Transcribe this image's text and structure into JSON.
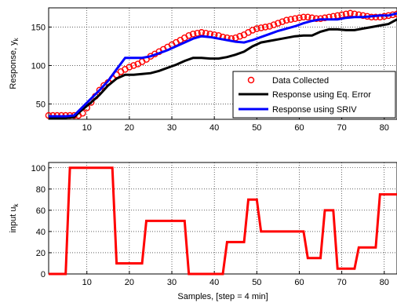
{
  "chart_data": [
    {
      "type": "line",
      "ylabel_main": "Response, y",
      "ylabel_sub": "k",
      "xlim": [
        1,
        83
      ],
      "ylim": [
        30,
        175
      ],
      "xticks": [
        10,
        20,
        30,
        40,
        50,
        60,
        70,
        80
      ],
      "yticks": [
        50,
        100,
        150
      ],
      "grid": true,
      "legend_position": "bottom-right",
      "colors": {
        "data": "#ff0000",
        "eq_error": "#000000",
        "sriv": "#0000ff"
      },
      "series": [
        {
          "name": "Data Collected",
          "style": "markers",
          "x": [
            1,
            2,
            3,
            4,
            5,
            6,
            7,
            8,
            9,
            10,
            11,
            12,
            13,
            14,
            15,
            16,
            17,
            18,
            19,
            20,
            21,
            22,
            23,
            24,
            25,
            26,
            27,
            28,
            29,
            30,
            31,
            32,
            33,
            34,
            35,
            36,
            37,
            38,
            39,
            40,
            41,
            42,
            43,
            44,
            45,
            46,
            47,
            48,
            49,
            50,
            51,
            52,
            53,
            54,
            55,
            56,
            57,
            58,
            59,
            60,
            61,
            62,
            63,
            64,
            65,
            66,
            67,
            68,
            69,
            70,
            71,
            72,
            73,
            74,
            75,
            76,
            77,
            78,
            79,
            80,
            81,
            82,
            83
          ],
          "y": [
            35,
            35,
            35,
            35,
            35,
            35,
            35,
            35,
            38,
            45,
            52,
            60,
            68,
            74,
            78,
            83,
            88,
            92,
            95,
            98,
            100,
            102,
            105,
            108,
            112,
            115,
            118,
            121,
            124,
            127,
            130,
            133,
            136,
            139,
            141,
            142,
            143,
            142,
            141,
            140,
            139,
            137,
            136,
            135,
            136,
            138,
            140,
            143,
            146,
            148,
            149,
            150,
            151,
            153,
            155,
            157,
            159,
            160,
            161,
            162,
            163,
            163,
            162,
            161,
            161,
            162,
            163,
            164,
            165,
            166,
            167,
            168,
            167,
            166,
            165,
            164,
            163,
            163,
            163,
            164,
            165,
            166,
            167
          ]
        },
        {
          "name": "Response using Eq. Error",
          "style": "line",
          "x": [
            1,
            3,
            5,
            7,
            9,
            11,
            13,
            15,
            17,
            19,
            21,
            23,
            25,
            27,
            29,
            31,
            33,
            35,
            37,
            39,
            41,
            43,
            45,
            47,
            49,
            51,
            53,
            55,
            57,
            59,
            61,
            63,
            65,
            67,
            69,
            71,
            73,
            75,
            77,
            79,
            81,
            83
          ],
          "y": [
            32,
            32,
            32,
            33,
            43,
            52,
            62,
            74,
            83,
            88,
            88,
            89,
            90,
            93,
            97,
            101,
            106,
            110,
            110,
            109,
            109,
            111,
            114,
            118,
            125,
            130,
            132,
            134,
            136,
            138,
            139,
            139,
            144,
            147,
            147,
            146,
            146,
            148,
            150,
            152,
            154,
            160
          ]
        },
        {
          "name": "Response using SRIV",
          "style": "line",
          "x": [
            1,
            3,
            5,
            7,
            9,
            11,
            13,
            15,
            17,
            19,
            21,
            23,
            25,
            27,
            29,
            31,
            33,
            35,
            37,
            39,
            41,
            43,
            45,
            47,
            49,
            51,
            53,
            55,
            57,
            59,
            61,
            63,
            65,
            67,
            69,
            71,
            73,
            75,
            77,
            79,
            81,
            83
          ],
          "y": [
            34,
            34,
            34,
            35,
            46,
            57,
            68,
            80,
            95,
            110,
            110,
            110,
            112,
            116,
            120,
            125,
            130,
            135,
            138,
            137,
            135,
            133,
            131,
            130,
            133,
            137,
            141,
            145,
            148,
            151,
            155,
            158,
            160,
            160,
            160,
            162,
            163,
            163,
            164,
            165,
            165,
            168
          ]
        }
      ]
    },
    {
      "type": "line",
      "ylabel_main": "input u",
      "ylabel_sub": "k",
      "xlabel": "Samples, [step = 4 min]",
      "xlim": [
        1,
        83
      ],
      "ylim": [
        0,
        105
      ],
      "xticks": [
        10,
        20,
        30,
        40,
        50,
        60,
        70,
        80
      ],
      "yticks": [
        0,
        20,
        40,
        60,
        80,
        100
      ],
      "grid": true,
      "color": "#ff0000",
      "series": [
        {
          "style": "line",
          "x": [
            1,
            5,
            6,
            16,
            17,
            23,
            24,
            33,
            34,
            42,
            43,
            47,
            48,
            50,
            51,
            61,
            62,
            65,
            66,
            68,
            69,
            73,
            74,
            78,
            79,
            83
          ],
          "y": [
            0,
            0,
            100,
            100,
            10,
            10,
            50,
            50,
            0,
            0,
            30,
            30,
            70,
            70,
            40,
            40,
            15,
            15,
            60,
            60,
            5,
            5,
            25,
            25,
            75,
            75
          ]
        }
      ]
    }
  ]
}
